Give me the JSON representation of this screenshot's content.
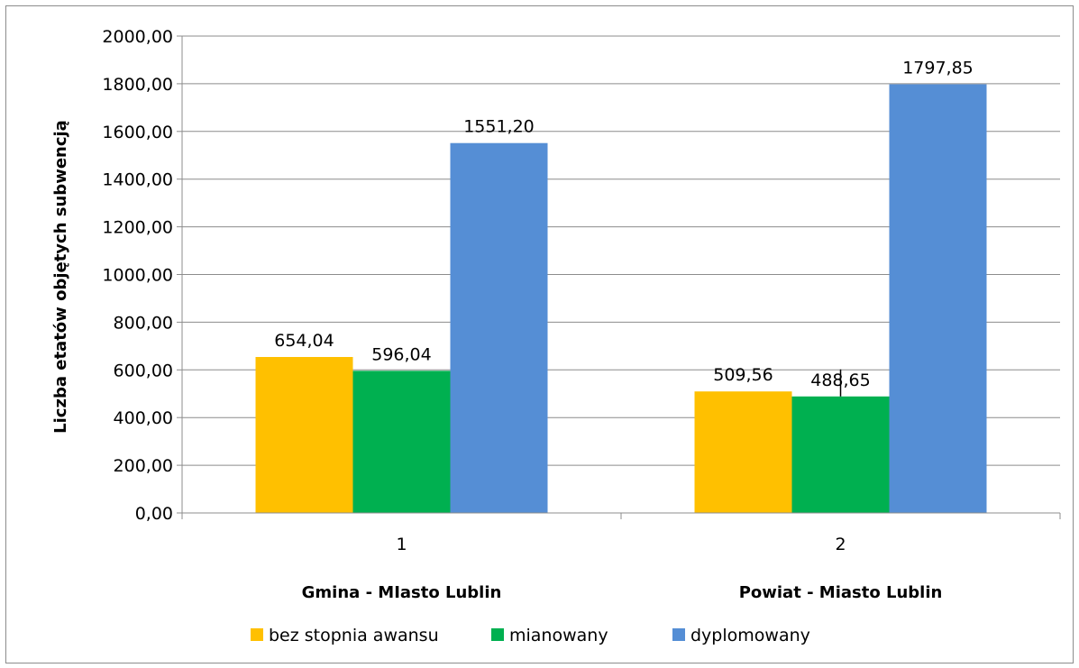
{
  "chart_data": {
    "type": "bar",
    "ylabel": "Liczba etatów objętych subwencją",
    "ylim": [
      0,
      2000
    ],
    "ytick_step": 200,
    "ytick_labels": [
      "0,00",
      "200,00",
      "400,00",
      "600,00",
      "800,00",
      "1000,00",
      "1200,00",
      "1400,00",
      "1600,00",
      "1800,00",
      "2000,00"
    ],
    "categories": [
      "1",
      "2"
    ],
    "group_labels": [
      "Gmina - MIasto Lublin",
      "Powiat - Miasto Lublin"
    ],
    "series": [
      {
        "name": "bez stopnia awansu",
        "color": "#ffc000",
        "values": [
          654.04,
          509.56
        ],
        "labels": [
          "654,04",
          "509,56"
        ]
      },
      {
        "name": "mianowany",
        "color": "#00b050",
        "values": [
          596.04,
          488.65
        ],
        "labels": [
          "596,04",
          "488,65"
        ]
      },
      {
        "name": "dyplomowany",
        "color": "#558ed5",
        "values": [
          1551.2,
          1797.85
        ],
        "labels": [
          "1551,20",
          "1797,85"
        ]
      }
    ],
    "grid": true,
    "legend_position": "bottom"
  }
}
